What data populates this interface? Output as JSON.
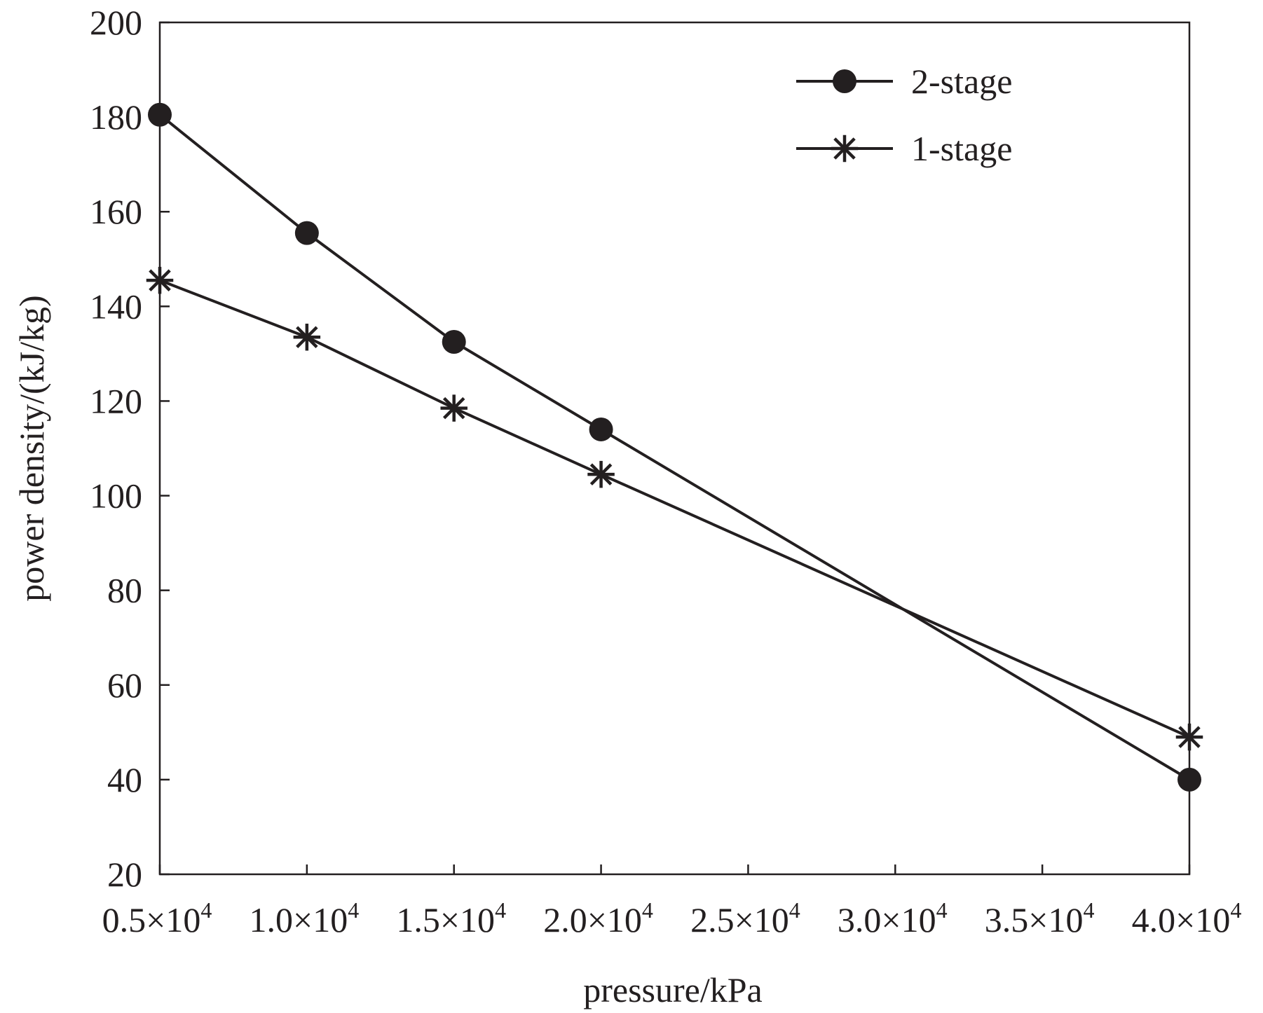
{
  "chart_data": {
    "type": "line",
    "title": "",
    "xlabel": "pressure/kPa",
    "ylabel": "power density/(kJ/kg)",
    "xlim": [
      5000,
      40000
    ],
    "ylim": [
      20,
      200
    ],
    "x_ticks": [
      5000,
      10000,
      15000,
      20000,
      25000,
      30000,
      35000,
      40000
    ],
    "x_tick_labels": [
      {
        "mantissa": "0.5",
        "times": "×10",
        "exp": "4"
      },
      {
        "mantissa": "1.0",
        "times": "×10",
        "exp": "4"
      },
      {
        "mantissa": "1.5",
        "times": "×10",
        "exp": "4"
      },
      {
        "mantissa": "2.0",
        "times": "×10",
        "exp": "4"
      },
      {
        "mantissa": "2.5",
        "times": "×10",
        "exp": "4"
      },
      {
        "mantissa": "3.0",
        "times": "×10",
        "exp": "4"
      },
      {
        "mantissa": "3.5",
        "times": "×10",
        "exp": "4"
      },
      {
        "mantissa": "4.0",
        "times": "×10",
        "exp": "4"
      }
    ],
    "y_ticks": [
      20,
      40,
      60,
      80,
      100,
      120,
      140,
      160,
      180,
      200
    ],
    "y_tick_labels": [
      "20",
      "40",
      "60",
      "80",
      "100",
      "120",
      "140",
      "160",
      "180",
      "200"
    ],
    "grid": false,
    "legend_position": "top-right",
    "series": [
      {
        "name": "2-stage",
        "marker": "circle",
        "color": "#231f20",
        "x": [
          5000,
          10000,
          15000,
          20000,
          40000
        ],
        "y": [
          180.5,
          155.5,
          132.5,
          114,
          40
        ]
      },
      {
        "name": "1-stage",
        "marker": "asterisk",
        "color": "#231f20",
        "x": [
          5000,
          10000,
          15000,
          20000,
          40000
        ],
        "y": [
          145.5,
          133.5,
          118.5,
          104.5,
          49
        ]
      }
    ]
  }
}
